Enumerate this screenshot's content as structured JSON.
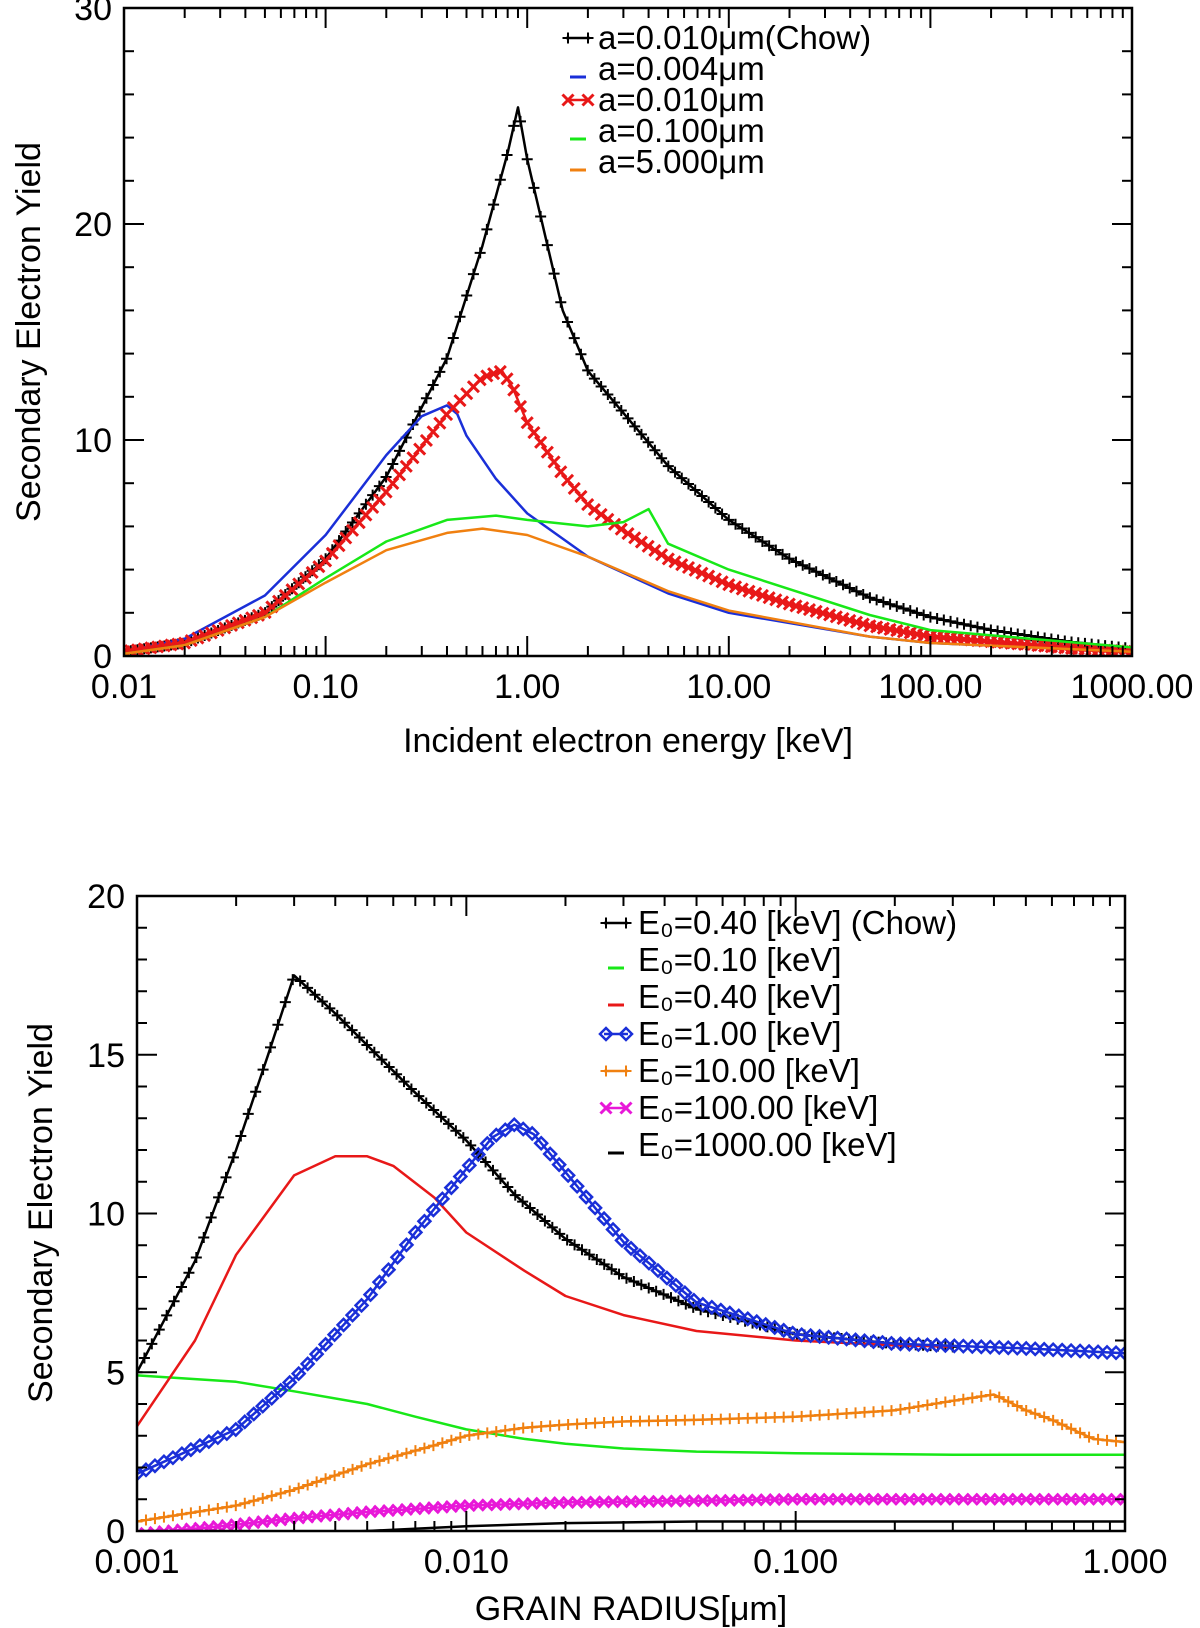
{
  "chart_data": [
    {
      "type": "line",
      "xscale": "log",
      "xlabel": "Incident electron energy [keV]",
      "ylabel": "Secondary Electron Yield",
      "xlim": [
        0.01,
        1000
      ],
      "ylim": [
        0,
        30
      ],
      "xticks": [
        0.01,
        0.1,
        1,
        10,
        100,
        1000
      ],
      "xtick_labels": [
        "0.01",
        "0.10",
        "1.00",
        "10.00",
        "100.00",
        "1000.00"
      ],
      "yticks": [
        0,
        10,
        20,
        30
      ],
      "ytick_labels": [
        "0",
        "10",
        "20",
        "30"
      ],
      "grid": false,
      "legend_position": "top-right",
      "series": [
        {
          "name": "a=0.010μm(Chow)",
          "color": "#000000",
          "marker": "plus",
          "x": [
            0.01,
            0.02,
            0.05,
            0.1,
            0.2,
            0.4,
            0.6,
            0.8,
            0.9,
            1.0,
            1.5,
            2,
            5,
            10,
            20,
            50,
            100,
            200,
            500,
            1000
          ],
          "y": [
            0.2,
            0.6,
            2.0,
            4.5,
            8.3,
            13.8,
            19.0,
            23.3,
            25.4,
            23.0,
            16.0,
            13.2,
            8.8,
            6.3,
            4.5,
            2.7,
            1.8,
            1.2,
            0.65,
            0.35
          ]
        },
        {
          "name": "a=0.004μm",
          "color": "#1a2fd8",
          "marker": "none",
          "x": [
            0.01,
            0.02,
            0.05,
            0.1,
            0.2,
            0.3,
            0.4,
            0.45,
            0.5,
            0.7,
            1.0,
            2,
            5,
            10,
            50,
            100,
            1000
          ],
          "y": [
            0.2,
            0.8,
            2.8,
            5.6,
            9.3,
            11.1,
            11.6,
            11.2,
            10.2,
            8.2,
            6.6,
            4.6,
            2.9,
            2.0,
            0.9,
            0.6,
            0.2
          ]
        },
        {
          "name": "a=0.010μm",
          "color": "#e81818",
          "marker": "x",
          "x": [
            0.01,
            0.02,
            0.05,
            0.1,
            0.2,
            0.4,
            0.6,
            0.75,
            0.85,
            1.0,
            1.5,
            2,
            3,
            5,
            10,
            20,
            50,
            100,
            500,
            1000
          ],
          "y": [
            0.2,
            0.6,
            2.0,
            4.4,
            7.6,
            11.2,
            12.9,
            13.2,
            12.4,
            10.8,
            8.4,
            7.0,
            5.8,
            4.5,
            3.3,
            2.4,
            1.4,
            0.9,
            0.35,
            0.2
          ]
        },
        {
          "name": "a=0.100μm",
          "color": "#18e818",
          "marker": "none",
          "x": [
            0.01,
            0.02,
            0.05,
            0.1,
            0.2,
            0.4,
            0.7,
            1.0,
            2,
            3,
            4,
            5,
            10,
            50,
            100,
            1000
          ],
          "y": [
            0.1,
            0.5,
            1.8,
            3.6,
            5.3,
            6.3,
            6.5,
            6.3,
            6.0,
            6.2,
            6.8,
            5.2,
            4.0,
            1.9,
            1.2,
            0.4
          ]
        },
        {
          "name": "a=5.000μm",
          "color": "#f08010",
          "marker": "none",
          "x": [
            0.01,
            0.02,
            0.05,
            0.1,
            0.2,
            0.4,
            0.6,
            1.0,
            2,
            5,
            10,
            50,
            100,
            1000
          ],
          "y": [
            0.1,
            0.5,
            1.8,
            3.4,
            4.9,
            5.7,
            5.9,
            5.6,
            4.6,
            3.0,
            2.1,
            0.9,
            0.6,
            0.2
          ]
        }
      ]
    },
    {
      "type": "line",
      "xscale": "log",
      "xlabel": "GRAIN RADIUS[μm]",
      "ylabel": "Secondary Electron Yield",
      "xlim": [
        0.001,
        1.0
      ],
      "ylim": [
        0,
        20
      ],
      "xticks": [
        0.001,
        0.01,
        0.1,
        1.0
      ],
      "xtick_labels": [
        "0.001",
        "0.010",
        "0.100",
        "1.000"
      ],
      "yticks": [
        0,
        5,
        10,
        15,
        20
      ],
      "ytick_labels": [
        "0",
        "5",
        "10",
        "15",
        "20"
      ],
      "grid": false,
      "legend_position": "top-right",
      "series": [
        {
          "name": "E₀=0.40 [keV] (Chow)",
          "color": "#000000",
          "marker": "plus",
          "x": [
            0.001,
            0.0015,
            0.002,
            0.0025,
            0.003,
            0.004,
            0.005,
            0.007,
            0.01,
            0.014,
            0.02,
            0.03,
            0.05,
            0.1,
            0.2,
            0.3
          ],
          "y": [
            5.0,
            8.5,
            12.0,
            15.0,
            17.5,
            16.3,
            15.3,
            13.8,
            12.3,
            10.6,
            9.2,
            8.0,
            7.0,
            6.2,
            5.9,
            5.8
          ]
        },
        {
          "name": "E₀=0.10 [keV]",
          "color": "#18e818",
          "marker": "none",
          "x": [
            0.001,
            0.002,
            0.003,
            0.005,
            0.007,
            0.01,
            0.015,
            0.02,
            0.03,
            0.05,
            0.1,
            0.3,
            1.0
          ],
          "y": [
            4.9,
            4.7,
            4.4,
            4.0,
            3.6,
            3.2,
            2.9,
            2.75,
            2.6,
            2.5,
            2.45,
            2.4,
            2.4
          ]
        },
        {
          "name": "E₀=0.40 [keV]",
          "color": "#e81818",
          "marker": "none",
          "x": [
            0.001,
            0.0015,
            0.002,
            0.003,
            0.004,
            0.005,
            0.006,
            0.008,
            0.01,
            0.015,
            0.02,
            0.03,
            0.05,
            0.1,
            0.2,
            0.3
          ],
          "y": [
            3.3,
            6.0,
            8.7,
            11.2,
            11.8,
            11.8,
            11.5,
            10.5,
            9.4,
            8.2,
            7.4,
            6.8,
            6.3,
            6.0,
            5.85,
            5.8
          ]
        },
        {
          "name": "E₀=1.00 [keV]",
          "color": "#1a2fd8",
          "marker": "diamond",
          "x": [
            0.001,
            0.002,
            0.003,
            0.005,
            0.007,
            0.01,
            0.012,
            0.014,
            0.016,
            0.02,
            0.03,
            0.05,
            0.1,
            0.2,
            0.5,
            1.0
          ],
          "y": [
            1.8,
            3.2,
            4.8,
            7.3,
            9.4,
            11.4,
            12.4,
            12.8,
            12.5,
            11.3,
            9.1,
            7.2,
            6.2,
            5.9,
            5.75,
            5.6
          ]
        },
        {
          "name": "E₀=10.00 [keV]",
          "color": "#f08010",
          "marker": "plus",
          "x": [
            0.001,
            0.002,
            0.003,
            0.005,
            0.008,
            0.01,
            0.015,
            0.02,
            0.03,
            0.05,
            0.1,
            0.2,
            0.3,
            0.4,
            0.5,
            0.6,
            0.8,
            1.0
          ],
          "y": [
            0.3,
            0.8,
            1.3,
            2.1,
            2.7,
            3.0,
            3.25,
            3.35,
            3.45,
            3.5,
            3.6,
            3.8,
            4.1,
            4.3,
            3.8,
            3.5,
            2.9,
            2.8
          ]
        },
        {
          "name": "E₀=100.00 [keV]",
          "color": "#e818d8",
          "marker": "x",
          "x": [
            0.001,
            0.002,
            0.003,
            0.005,
            0.01,
            0.02,
            0.05,
            0.1,
            1.0
          ],
          "y": [
            -0.1,
            0.2,
            0.4,
            0.6,
            0.8,
            0.9,
            0.95,
            1.0,
            1.0
          ]
        },
        {
          "name": "E₀=1000.00 [keV]",
          "color": "#000000",
          "marker": "none",
          "x": [
            0.001,
            0.002,
            0.005,
            0.01,
            0.02,
            0.05,
            0.1,
            1.0
          ],
          "y": [
            -0.25,
            -0.15,
            0.0,
            0.15,
            0.25,
            0.3,
            0.3,
            0.3
          ]
        }
      ]
    }
  ]
}
